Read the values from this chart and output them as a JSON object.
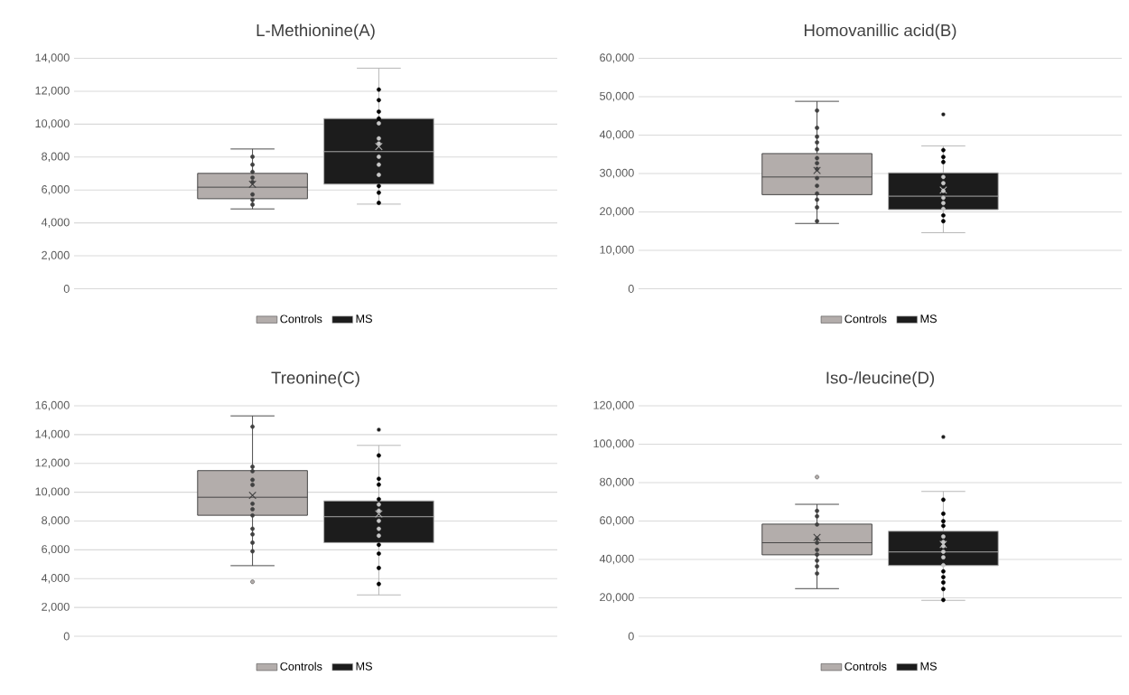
{
  "chart_data": [
    {
      "type": "box",
      "title": "L-Methionine(A)",
      "categories": [
        null
      ],
      "ylim": [
        0,
        14000
      ],
      "yticks": [
        {
          "value": 0,
          "label": "0"
        },
        {
          "value": 2000,
          "label": "2,000"
        },
        {
          "value": 4000,
          "label": "4,000"
        },
        {
          "value": 6000,
          "label": "6,000"
        },
        {
          "value": 8000,
          "label": "8,000"
        },
        {
          "value": 10000,
          "label": "10,000"
        },
        {
          "value": 12000,
          "label": "12,000"
        },
        {
          "value": 14000,
          "label": "14,000"
        }
      ],
      "grid": "y",
      "legend": "bottom",
      "series": [
        {
          "name": "Controls",
          "type": "box",
          "color": "#b3adab",
          "boxes": [
            {
              "low": 4850,
              "q1": 5470,
              "median": 6170,
              "q3": 7010,
              "high": 8490,
              "mean": 6350
            }
          ]
        },
        {
          "type": "scatter",
          "color": "#404040",
          "x": [
            null,
            null,
            null,
            null,
            null,
            null,
            null,
            null
          ],
          "values": [
            8020,
            7540,
            7100,
            6750,
            6480,
            5730,
            5400,
            5110
          ]
        },
        {
          "name": "MS",
          "type": "box",
          "color": "#1c1c1c",
          "boxes": [
            {
              "low": 5140,
              "q1": 6350,
              "median": 8330,
              "q3": 10340,
              "high": 13400,
              "mean": 8640
            }
          ]
        },
        {
          "type": "scatter",
          "colors": [
            "#000000",
            "#000000",
            "#000000",
            "#000000",
            "#c8c8c8",
            "#c8c8c8",
            "#c8c8c8",
            "#c8c8c8",
            "#c8c8c8",
            "#c8c8c8",
            "#000000",
            "#000000",
            "#000000"
          ],
          "x": [
            null,
            null,
            null,
            null,
            null,
            null,
            null,
            null,
            null,
            null,
            null,
            null,
            null
          ],
          "values": [
            12100,
            11460,
            10760,
            10340,
            10050,
            9130,
            8820,
            8020,
            7540,
            6920,
            6240,
            5840,
            5220
          ]
        }
      ]
    },
    {
      "type": "box",
      "title": "Homovanillic acid(B)",
      "categories": [
        null
      ],
      "ylim": [
        0,
        60000
      ],
      "yticks": [
        {
          "value": 0,
          "label": "0"
        },
        {
          "value": 10000,
          "label": "10,000"
        },
        {
          "value": 20000,
          "label": "20,000"
        },
        {
          "value": 30000,
          "label": "30,000"
        },
        {
          "value": 40000,
          "label": "40,000"
        },
        {
          "value": 50000,
          "label": "50,000"
        },
        {
          "value": 60000,
          "label": "60,000"
        }
      ],
      "grid": "y",
      "legend": "bottom",
      "series": [
        {
          "name": "Controls",
          "type": "box",
          "color": "#b3adab",
          "boxes": [
            {
              "low": 17000,
              "q1": 24500,
              "median": 29100,
              "q3": 35200,
              "high": 48800,
              "mean": 30800
            }
          ]
        },
        {
          "type": "scatter",
          "color": "#404040",
          "x": [
            null,
            null,
            null,
            null,
            null,
            null,
            null,
            null,
            null,
            null,
            null,
            null,
            null,
            null
          ],
          "values": [
            46400,
            41900,
            39600,
            38100,
            36300,
            34000,
            32700,
            31200,
            28800,
            26800,
            24800,
            23200,
            21200,
            17600
          ]
        },
        {
          "name": "MS",
          "type": "box",
          "color": "#1c1c1c",
          "boxes": [
            {
              "low": 14600,
              "q1": 20600,
              "median": 24100,
              "q3": 30200,
              "high": 37200,
              "mean": 25700,
              "outliers": [
                45400
              ]
            }
          ]
        },
        {
          "type": "scatter",
          "colors": [
            "#000000",
            "#000000",
            "#000000",
            "#c8c8c8",
            "#c8c8c8",
            "#c8c8c8",
            "#c8c8c8",
            "#c8c8c8",
            "#c8c8c8",
            "#000000",
            "#000000"
          ],
          "x": [
            null,
            null,
            null,
            null,
            null,
            null,
            null,
            null,
            null,
            null,
            null
          ],
          "values": [
            36100,
            34300,
            33000,
            29100,
            27500,
            25500,
            23700,
            22300,
            20800,
            19100,
            17600
          ]
        }
      ]
    },
    {
      "type": "box",
      "title": "Treonine(C)",
      "categories": [
        null
      ],
      "ylim": [
        0,
        16000
      ],
      "yticks": [
        {
          "value": 0,
          "label": "0"
        },
        {
          "value": 2000,
          "label": "2,000"
        },
        {
          "value": 4000,
          "label": "4,000"
        },
        {
          "value": 6000,
          "label": "6,000"
        },
        {
          "value": 8000,
          "label": "8,000"
        },
        {
          "value": 10000,
          "label": "10,000"
        },
        {
          "value": 12000,
          "label": "12,000"
        },
        {
          "value": 14000,
          "label": "14,000"
        },
        {
          "value": 16000,
          "label": "16,000"
        }
      ],
      "grid": "y",
      "legend": "bottom",
      "series": [
        {
          "name": "Controls",
          "type": "box",
          "color": "#b3adab",
          "boxes": [
            {
              "low": 4900,
              "q1": 8400,
              "median": 9650,
              "q3": 11500,
              "high": 15300,
              "mean": 9780,
              "outliers": [
                3780
              ]
            }
          ]
        },
        {
          "type": "scatter",
          "color": "#404040",
          "x": [
            null,
            null,
            null,
            null,
            null,
            null,
            null,
            null,
            null,
            null,
            null,
            null
          ],
          "values": [
            14550,
            11770,
            11460,
            10860,
            10510,
            9200,
            8820,
            8390,
            7460,
            7080,
            6500,
            5900
          ]
        },
        {
          "name": "MS",
          "type": "box",
          "color": "#1c1c1c",
          "boxes": [
            {
              "low": 2870,
              "q1": 6500,
              "median": 8300,
              "q3": 9400,
              "high": 13250,
              "mean": 8500,
              "outliers": [
                14340
              ]
            }
          ]
        },
        {
          "type": "scatter",
          "colors": [
            "#000000",
            "#000000",
            "#000000",
            "#000000",
            "#c8c8c8",
            "#c8c8c8",
            "#c8c8c8",
            "#c8c8c8",
            "#c8c8c8",
            "#000000",
            "#000000",
            "#000000",
            "#000000"
          ],
          "x": [
            null,
            null,
            null,
            null,
            null,
            null,
            null,
            null,
            null,
            null,
            null,
            null,
            null
          ],
          "values": [
            12550,
            10930,
            10530,
            9520,
            9150,
            8720,
            8010,
            7460,
            6980,
            6350,
            5740,
            4740,
            3630
          ]
        }
      ]
    },
    {
      "type": "box",
      "title": "Iso-/leucine(D)",
      "categories": [
        null
      ],
      "ylim": [
        0,
        120000
      ],
      "yticks": [
        {
          "value": 0,
          "label": "0"
        },
        {
          "value": 20000,
          "label": "20,000"
        },
        {
          "value": 40000,
          "label": "40,000"
        },
        {
          "value": 60000,
          "label": "60,000"
        },
        {
          "value": 80000,
          "label": "80,000"
        },
        {
          "value": 100000,
          "label": "100,000"
        },
        {
          "value": 120000,
          "label": "120,000"
        }
      ],
      "grid": "y",
      "legend": "bottom",
      "series": [
        {
          "name": "Controls",
          "type": "box",
          "color": "#b3adab",
          "boxes": [
            {
              "low": 24800,
              "q1": 42400,
              "median": 48700,
              "q3": 58400,
              "high": 68700,
              "mean": 51500,
              "outliers": [
                82900
              ]
            }
          ]
        },
        {
          "type": "scatter",
          "color": "#404040",
          "x": [
            null,
            null,
            null,
            null,
            null,
            null,
            null,
            null,
            null,
            null
          ],
          "values": [
            65300,
            62500,
            58200,
            50800,
            48700,
            45000,
            42500,
            39400,
            36400,
            32700
          ]
        },
        {
          "name": "MS",
          "type": "box",
          "color": "#1c1c1c",
          "boxes": [
            {
              "low": 18700,
              "q1": 36800,
              "median": 43900,
              "q3": 54700,
              "high": 75400,
              "mean": 47800,
              "outliers": [
                103800
              ]
            }
          ]
        },
        {
          "type": "scatter",
          "colors": [
            "#000000",
            "#000000",
            "#000000",
            "#000000",
            "#c8c8c8",
            "#c8c8c8",
            "#c8c8c8",
            "#c8c8c8",
            "#c8c8c8",
            "#c8c8c8",
            "#000000",
            "#000000",
            "#000000",
            "#000000",
            "#000000"
          ],
          "x": [
            null,
            null,
            null,
            null,
            null,
            null,
            null,
            null,
            null,
            null,
            null,
            null,
            null,
            null,
            null
          ],
          "values": [
            71100,
            63800,
            59900,
            57500,
            51900,
            49100,
            46900,
            44000,
            41100,
            37000,
            33800,
            30800,
            28000,
            24600,
            18900
          ]
        }
      ]
    }
  ]
}
